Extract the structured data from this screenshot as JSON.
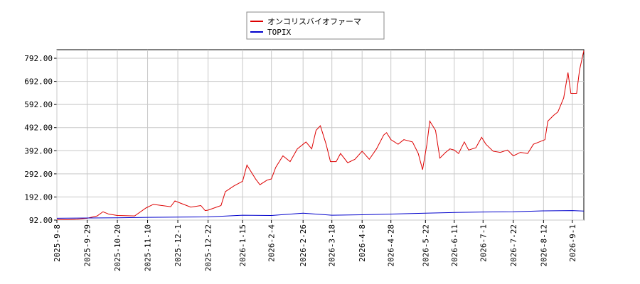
{
  "chart_data": {
    "type": "line",
    "xlim": [
      "2025-9-8",
      "2026-9-9"
    ],
    "xticks": [
      "2025-9-8",
      "2025-9-29",
      "2025-10-20",
      "2025-11-10",
      "2025-12-1",
      "2025-12-22",
      "2026-1-15",
      "2026-2-4",
      "2026-2-26",
      "2026-3-18",
      "2026-4-8",
      "2026-4-28",
      "2026-5-22",
      "2026-6-11",
      "2026-7-1",
      "2026-7-22",
      "2026-8-12",
      "2026-9-1"
    ],
    "ylim": [
      92,
      829
    ],
    "yticks": [
      {
        "value": 92,
        "label": "92.00"
      },
      {
        "value": 192,
        "label": "192.00"
      },
      {
        "value": 292,
        "label": "292.00"
      },
      {
        "value": 392,
        "label": "392.00"
      },
      {
        "value": 492,
        "label": "492.00"
      },
      {
        "value": 592,
        "label": "592.00"
      },
      {
        "value": 692,
        "label": "692.00"
      },
      {
        "value": 792,
        "label": "792.00"
      }
    ],
    "grid": true,
    "legend": "top",
    "series": [
      {
        "name": "オンコリスバイオファーマ",
        "color": "#dd0000",
        "x": [
          "2025-9-8",
          "2025-9-15",
          "2025-9-22",
          "2025-9-29",
          "2025-10-6",
          "2025-10-10",
          "2025-10-14",
          "2025-10-20",
          "2025-11-1",
          "2025-11-9",
          "2025-11-14",
          "2025-11-26",
          "2025-11-29",
          "2025-12-3",
          "2025-12-10",
          "2025-12-17",
          "2025-12-20",
          "2025-12-22",
          "2025-12-31",
          "2026-1-3",
          "2026-1-9",
          "2026-1-15",
          "2026-1-18",
          "2026-1-24",
          "2026-1-27",
          "2026-2-1",
          "2026-2-4",
          "2026-2-7",
          "2026-2-12",
          "2026-2-17",
          "2026-2-22",
          "2026-2-28",
          "2026-3-4",
          "2026-3-7",
          "2026-3-10",
          "2026-3-14",
          "2026-3-17",
          "2026-3-21",
          "2026-3-24",
          "2026-3-29",
          "2026-4-3",
          "2026-4-8",
          "2026-4-13",
          "2026-4-18",
          "2026-4-23",
          "2026-4-25",
          "2026-4-28",
          "2026-5-3",
          "2026-5-7",
          "2026-5-13",
          "2026-5-17",
          "2026-5-20",
          "2026-5-23",
          "2026-5-25",
          "2026-5-29",
          "2026-6-1",
          "2026-6-5",
          "2026-6-8",
          "2026-6-11",
          "2026-6-14",
          "2026-6-18",
          "2026-6-21",
          "2026-6-26",
          "2026-6-30",
          "2026-7-3",
          "2026-7-8",
          "2026-7-13",
          "2026-7-18",
          "2026-7-22",
          "2026-7-27",
          "2026-8-1",
          "2026-8-5",
          "2026-8-9",
          "2026-8-13",
          "2026-8-15",
          "2026-8-19",
          "2026-8-22",
          "2026-8-26",
          "2026-8-29",
          "2026-8-31",
          "2026-9-4",
          "2026-9-6",
          "2026-9-9"
        ],
        "values": [
          95,
          94,
          96,
          100,
          110,
          128,
          118,
          112,
          110,
          145,
          160,
          150,
          175,
          165,
          148,
          155,
          133,
          135,
          155,
          215,
          240,
          260,
          330,
          270,
          245,
          265,
          270,
          320,
          370,
          345,
          400,
          430,
          400,
          480,
          500,
          420,
          345,
          345,
          380,
          340,
          355,
          390,
          355,
          400,
          460,
          470,
          440,
          420,
          440,
          430,
          380,
          310,
          420,
          520,
          480,
          360,
          385,
          400,
          395,
          380,
          430,
          395,
          405,
          450,
          420,
          390,
          385,
          395,
          370,
          385,
          380,
          420,
          430,
          440,
          520,
          545,
          560,
          620,
          730,
          640,
          640,
          740,
          825
        ]
      },
      {
        "name": "TOPIX",
        "color": "#0000cc",
        "x": [
          "2025-9-8",
          "2025-10-20",
          "2025-11-10",
          "2025-12-22",
          "2026-1-15",
          "2026-2-4",
          "2026-2-26",
          "2026-3-18",
          "2026-4-8",
          "2026-4-28",
          "2026-5-22",
          "2026-6-11",
          "2026-7-1",
          "2026-7-22",
          "2026-8-12",
          "2026-9-1",
          "2026-9-9"
        ],
        "values": [
          100,
          102,
          104,
          106,
          113,
          112,
          122,
          113,
          115,
          118,
          122,
          125,
          127,
          128,
          132,
          133,
          131
        ]
      }
    ]
  }
}
